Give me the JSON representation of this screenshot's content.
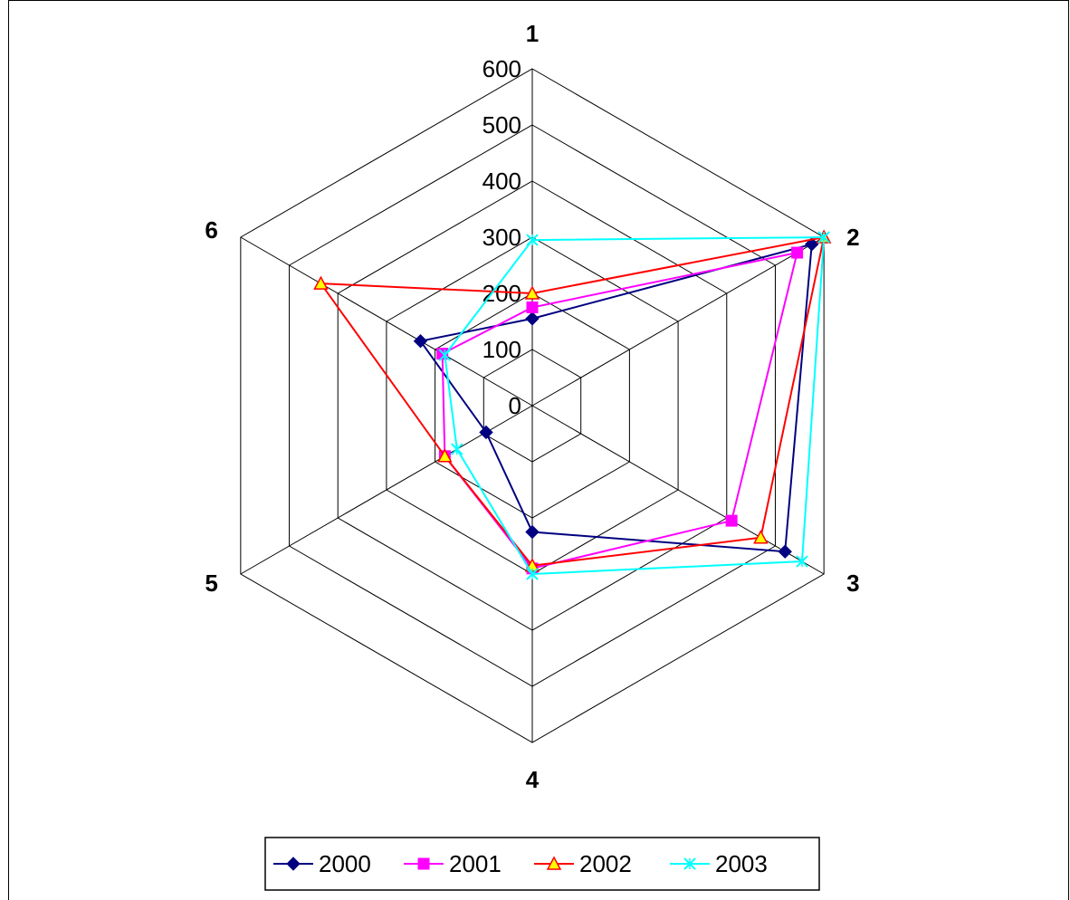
{
  "chart_data": {
    "type": "radar",
    "title": "",
    "categories": [
      "1",
      "2",
      "3",
      "4",
      "5",
      "6"
    ],
    "ticks": [
      "0",
      "100",
      "200",
      "300",
      "400",
      "500",
      "600"
    ],
    "rlim": [
      0,
      600
    ],
    "grid": true,
    "legend_position": "bottom",
    "series": [
      {
        "name": "2000",
        "color": "#000080",
        "marker": "diamond",
        "values": [
          155,
          575,
          520,
          225,
          95,
          230
        ]
      },
      {
        "name": "2001",
        "color": "#FF00FF",
        "marker": "square",
        "values": [
          175,
          545,
          410,
          290,
          180,
          185
        ]
      },
      {
        "name": "2002",
        "color": "#FF0000",
        "marker": "triangle",
        "values": [
          200,
          600,
          470,
          285,
          180,
          435
        ]
      },
      {
        "name": "2003",
        "color": "#00FFFF",
        "marker": "x",
        "values": [
          295,
          600,
          555,
          300,
          155,
          180
        ]
      }
    ]
  }
}
